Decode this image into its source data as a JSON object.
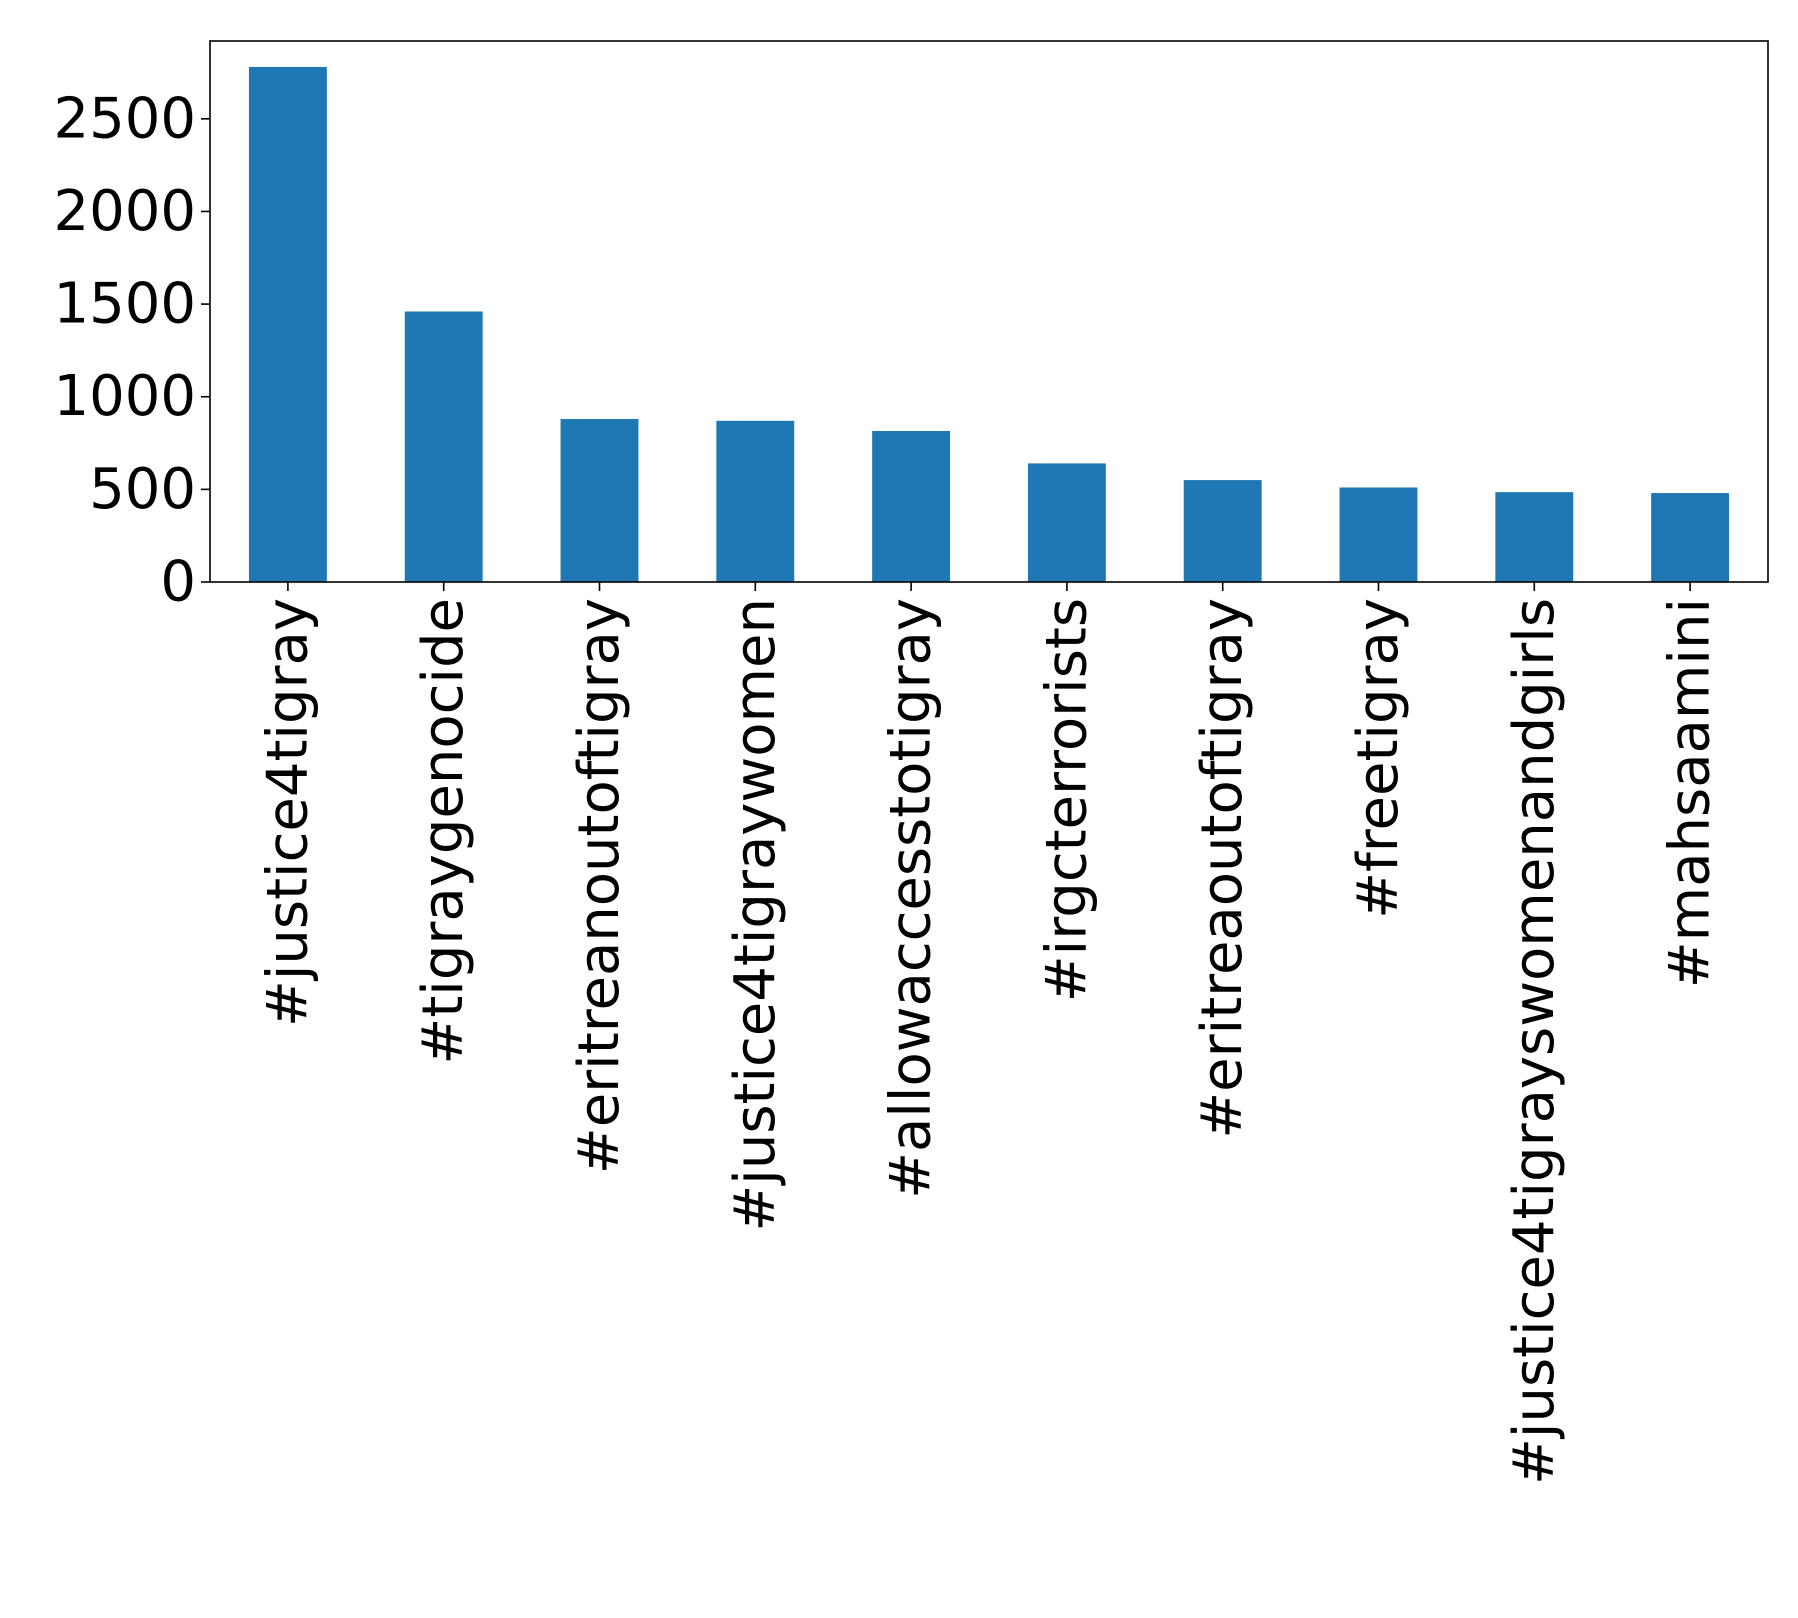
{
  "chart_data": {
    "type": "bar",
    "categories": [
      "#justice4tigray",
      "#tigraygenocide",
      "#eritreanoutoftigray",
      "#justice4tigraywomen",
      "#allowaccesstotigray",
      "#irgcterrorists",
      "#eritreaoutoftigray",
      "#freetigray",
      "#justice4tigrayswomenandgirls",
      "#mahsaamini"
    ],
    "values": [
      2780,
      1460,
      880,
      870,
      815,
      640,
      550,
      510,
      485,
      480
    ],
    "title": "",
    "xlabel": "",
    "ylabel": "",
    "ylim": [
      0,
      2920
    ],
    "yticks": [
      0,
      500,
      1000,
      1500,
      2000,
      2500
    ],
    "bar_color": "#1f77b4",
    "grid": false,
    "legend": "none"
  }
}
